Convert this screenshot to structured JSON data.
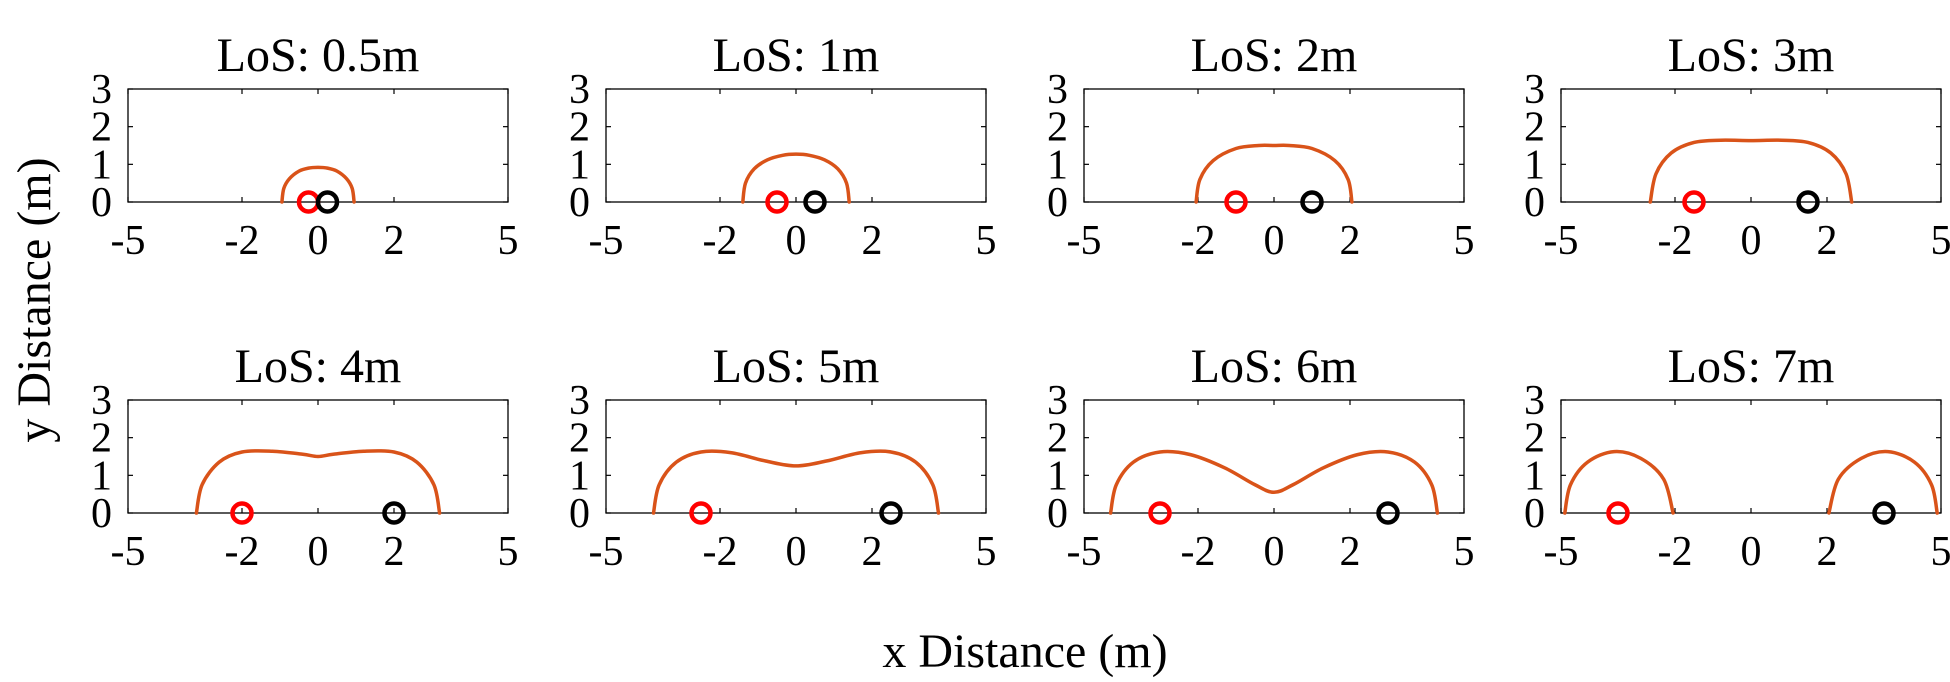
{
  "figure": {
    "xlabel": "x Distance (m)",
    "ylabel": "y Distance (m)"
  },
  "colors": {
    "curve": "#D95319",
    "marker_left": "#FF0000",
    "marker_right": "#000000",
    "axes": "#000000"
  },
  "chart_data": [
    {
      "type": "line",
      "title": "LoS: 0.5m",
      "los": 0.5,
      "xlim": [
        -5,
        5
      ],
      "ylim": [
        0,
        3
      ],
      "xticks": [
        -5,
        -2,
        0,
        2,
        5
      ],
      "yticks": [
        0,
        1,
        2,
        3
      ],
      "boundary": [
        [
          -0.95,
          0
        ],
        [
          -0.9,
          0.36
        ],
        [
          -0.75,
          0.62
        ],
        [
          -0.5,
          0.82
        ],
        [
          -0.25,
          0.9
        ],
        [
          0,
          0.92
        ],
        [
          0.25,
          0.9
        ],
        [
          0.5,
          0.82
        ],
        [
          0.75,
          0.62
        ],
        [
          0.9,
          0.36
        ],
        [
          0.95,
          0
        ]
      ],
      "markers": [
        {
          "x": -0.25,
          "y": 0,
          "color": "red"
        },
        {
          "x": 0.25,
          "y": 0,
          "color": "black"
        }
      ]
    },
    {
      "type": "line",
      "title": "LoS: 1m",
      "los": 1,
      "xlim": [
        -5,
        5
      ],
      "ylim": [
        0,
        3
      ],
      "xticks": [
        -5,
        -2,
        0,
        2,
        5
      ],
      "yticks": [
        0,
        1,
        2,
        3
      ],
      "boundary": [
        [
          -1.4,
          0
        ],
        [
          -1.33,
          0.5
        ],
        [
          -1.1,
          0.88
        ],
        [
          -0.75,
          1.12
        ],
        [
          -0.35,
          1.24
        ],
        [
          0,
          1.27
        ],
        [
          0.35,
          1.24
        ],
        [
          0.75,
          1.12
        ],
        [
          1.1,
          0.88
        ],
        [
          1.33,
          0.5
        ],
        [
          1.4,
          0
        ]
      ],
      "markers": [
        {
          "x": -0.5,
          "y": 0,
          "color": "red"
        },
        {
          "x": 0.5,
          "y": 0,
          "color": "black"
        }
      ]
    },
    {
      "type": "line",
      "title": "LoS: 2m",
      "los": 2,
      "xlim": [
        -5,
        5
      ],
      "ylim": [
        0,
        3
      ],
      "xticks": [
        -5,
        -2,
        0,
        2,
        5
      ],
      "yticks": [
        0,
        1,
        2,
        3
      ],
      "boundary": [
        [
          -2.05,
          0
        ],
        [
          -1.95,
          0.6
        ],
        [
          -1.6,
          1.1
        ],
        [
          -1.0,
          1.42
        ],
        [
          -0.4,
          1.5
        ],
        [
          0,
          1.5
        ],
        [
          0.4,
          1.5
        ],
        [
          1.0,
          1.42
        ],
        [
          1.6,
          1.1
        ],
        [
          1.95,
          0.6
        ],
        [
          2.05,
          0
        ]
      ],
      "markers": [
        {
          "x": -1,
          "y": 0,
          "color": "red"
        },
        {
          "x": 1,
          "y": 0,
          "color": "black"
        }
      ]
    },
    {
      "type": "line",
      "title": "LoS: 3m",
      "los": 3,
      "xlim": [
        -5,
        5
      ],
      "ylim": [
        0,
        3
      ],
      "xticks": [
        -5,
        -2,
        0,
        2,
        5
      ],
      "yticks": [
        0,
        1,
        2,
        3
      ],
      "boundary": [
        [
          -2.65,
          0
        ],
        [
          -2.5,
          0.75
        ],
        [
          -2.1,
          1.3
        ],
        [
          -1.5,
          1.58
        ],
        [
          -0.8,
          1.64
        ],
        [
          0,
          1.63
        ],
        [
          0.8,
          1.64
        ],
        [
          1.5,
          1.58
        ],
        [
          2.1,
          1.3
        ],
        [
          2.5,
          0.75
        ],
        [
          2.65,
          0
        ]
      ],
      "markers": [
        {
          "x": -1.5,
          "y": 0,
          "color": "red"
        },
        {
          "x": 1.5,
          "y": 0,
          "color": "black"
        }
      ]
    },
    {
      "type": "line",
      "title": "LoS: 4m",
      "los": 4,
      "xlim": [
        -5,
        5
      ],
      "ylim": [
        0,
        3
      ],
      "xticks": [
        -5,
        -2,
        0,
        2,
        5
      ],
      "yticks": [
        0,
        1,
        2,
        3
      ],
      "boundary": [
        [
          -3.2,
          0
        ],
        [
          -3.05,
          0.75
        ],
        [
          -2.6,
          1.35
        ],
        [
          -2.0,
          1.62
        ],
        [
          -1.2,
          1.64
        ],
        [
          -0.4,
          1.56
        ],
        [
          0,
          1.5
        ],
        [
          0.4,
          1.56
        ],
        [
          1.2,
          1.64
        ],
        [
          2.0,
          1.62
        ],
        [
          2.6,
          1.35
        ],
        [
          3.05,
          0.75
        ],
        [
          3.2,
          0
        ]
      ],
      "markers": [
        {
          "x": -2,
          "y": 0,
          "color": "red"
        },
        {
          "x": 2,
          "y": 0,
          "color": "black"
        }
      ]
    },
    {
      "type": "line",
      "title": "LoS: 5m",
      "los": 5,
      "xlim": [
        -5,
        5
      ],
      "ylim": [
        0,
        3
      ],
      "xticks": [
        -5,
        -2,
        0,
        2,
        5
      ],
      "yticks": [
        0,
        1,
        2,
        3
      ],
      "boundary": [
        [
          -3.75,
          0
        ],
        [
          -3.6,
          0.75
        ],
        [
          -3.15,
          1.35
        ],
        [
          -2.5,
          1.62
        ],
        [
          -1.7,
          1.6
        ],
        [
          -0.8,
          1.38
        ],
        [
          0,
          1.25
        ],
        [
          0.8,
          1.38
        ],
        [
          1.7,
          1.6
        ],
        [
          2.5,
          1.62
        ],
        [
          3.15,
          1.35
        ],
        [
          3.6,
          0.75
        ],
        [
          3.75,
          0
        ]
      ],
      "markers": [
        {
          "x": -2.5,
          "y": 0,
          "color": "red"
        },
        {
          "x": 2.5,
          "y": 0,
          "color": "black"
        }
      ]
    },
    {
      "type": "line",
      "title": "LoS: 6m",
      "los": 6,
      "xlim": [
        -5,
        5
      ],
      "ylim": [
        0,
        3
      ],
      "xticks": [
        -5,
        -2,
        0,
        2,
        5
      ],
      "yticks": [
        0,
        1,
        2,
        3
      ],
      "boundary": [
        [
          -4.3,
          0
        ],
        [
          -4.15,
          0.75
        ],
        [
          -3.7,
          1.35
        ],
        [
          -3.0,
          1.62
        ],
        [
          -2.2,
          1.55
        ],
        [
          -1.3,
          1.2
        ],
        [
          -0.5,
          0.75
        ],
        [
          0,
          0.55
        ],
        [
          0.5,
          0.75
        ],
        [
          1.3,
          1.2
        ],
        [
          2.2,
          1.55
        ],
        [
          3.0,
          1.62
        ],
        [
          3.7,
          1.35
        ],
        [
          4.15,
          0.75
        ],
        [
          4.3,
          0
        ]
      ],
      "markers": [
        {
          "x": -3,
          "y": 0,
          "color": "red"
        },
        {
          "x": 3,
          "y": 0,
          "color": "black"
        }
      ]
    },
    {
      "type": "line",
      "title": "LoS: 7m",
      "los": 7,
      "xlim": [
        -5,
        5
      ],
      "ylim": [
        0,
        3
      ],
      "xticks": [
        -5,
        -2,
        0,
        2,
        5
      ],
      "yticks": [
        0,
        1,
        2,
        3
      ],
      "boundary": [
        [
          -4.9,
          0
        ],
        [
          -4.75,
          0.75
        ],
        [
          -4.3,
          1.35
        ],
        [
          -3.6,
          1.63
        ],
        [
          -2.9,
          1.45
        ],
        [
          -2.3,
          0.9
        ],
        [
          -2.05,
          0
        ]
      ],
      "boundary2": [
        [
          2.05,
          0
        ],
        [
          2.3,
          0.9
        ],
        [
          2.9,
          1.45
        ],
        [
          3.6,
          1.63
        ],
        [
          4.3,
          1.35
        ],
        [
          4.75,
          0.75
        ],
        [
          4.9,
          0
        ]
      ],
      "markers": [
        {
          "x": -3.5,
          "y": 0,
          "color": "red"
        },
        {
          "x": 3.5,
          "y": 0,
          "color": "black"
        }
      ]
    }
  ]
}
